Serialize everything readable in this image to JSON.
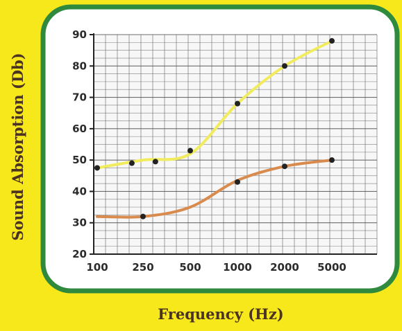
{
  "chart_data": {
    "type": "line",
    "xlabel": "Frequency (Hz)",
    "ylabel": "Sound Absorption (Db)",
    "x_tick_labels": [
      "100",
      "250",
      "500",
      "1000",
      "2000",
      "5000"
    ],
    "y_ticks": [
      20,
      30,
      40,
      50,
      60,
      70,
      80,
      90
    ],
    "ylim": [
      20,
      90
    ],
    "grid": true,
    "series": [
      {
        "color": "#f1ec5e",
        "line_x": [
          100,
          250,
          500,
          1000,
          2000,
          5000
        ],
        "line_y": [
          47.5,
          50,
          52,
          68,
          80,
          88
        ],
        "points_x": [
          100,
          200,
          300,
          500,
          1000,
          2000,
          5000
        ],
        "points_y": [
          47.5,
          49,
          49.5,
          53,
          68,
          80,
          88
        ]
      },
      {
        "color": "#d98b4e",
        "line_x": [
          100,
          250,
          500,
          1000,
          2000,
          5000
        ],
        "line_y": [
          32,
          32,
          35,
          43.5,
          48,
          50
        ],
        "points_x": [
          250,
          1000,
          2000,
          5000
        ],
        "points_y": [
          32,
          43,
          48,
          50
        ]
      }
    ]
  },
  "colors": {
    "background": "#f7e81c",
    "panel_border": "#2f8a3e",
    "panel_fill": "#ffffff",
    "grid": "#555555",
    "marker": "#222222"
  }
}
